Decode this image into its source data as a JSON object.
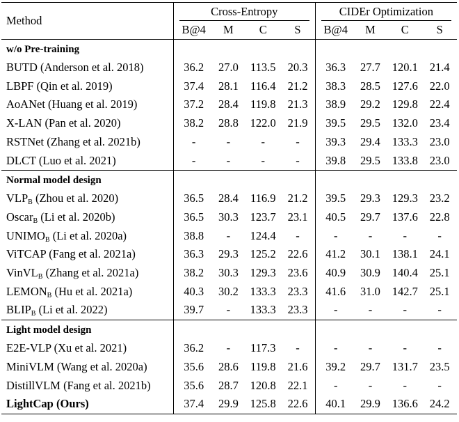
{
  "table": {
    "method_header": "Method",
    "group_headers": [
      "Cross-Entropy",
      "CIDEr Optimization"
    ],
    "metric_headers": [
      "B@4",
      "M",
      "C",
      "S",
      "B@4",
      "M",
      "C",
      "S"
    ],
    "sections": [
      {
        "label": "w/o Pre-training",
        "rows": [
          {
            "name": "BUTD",
            "sub": "",
            "cite": " (Anderson et al. 2018)",
            "values": [
              "36.2",
              "27.0",
              "113.5",
              "20.3",
              "36.3",
              "27.7",
              "120.1",
              "21.4"
            ]
          },
          {
            "name": "LBPF",
            "sub": "",
            "cite": " (Qin et al. 2019)",
            "values": [
              "37.4",
              "28.1",
              "116.4",
              "21.2",
              "38.3",
              "28.5",
              "127.6",
              "22.0"
            ]
          },
          {
            "name": "AoANet",
            "sub": "",
            "cite": " (Huang et al. 2019)",
            "values": [
              "37.2",
              "28.4",
              "119.8",
              "21.3",
              "38.9",
              "29.2",
              "129.8",
              "22.4"
            ]
          },
          {
            "name": "X-LAN",
            "sub": "",
            "cite": " (Pan et al. 2020)",
            "values": [
              "38.2",
              "28.8",
              "122.0",
              "21.9",
              "39.5",
              "29.5",
              "132.0",
              "23.4"
            ]
          },
          {
            "name": "RSTNet",
            "sub": "",
            "cite": " (Zhang et al. 2021b)",
            "values": [
              "-",
              "-",
              "-",
              "-",
              "39.3",
              "29.4",
              "133.3",
              "23.0"
            ]
          },
          {
            "name": "DLCT",
            "sub": "",
            "cite": " (Luo et al. 2021)",
            "values": [
              "-",
              "-",
              "-",
              "-",
              "39.8",
              "29.5",
              "133.8",
              "23.0"
            ]
          }
        ]
      },
      {
        "label": "Normal model design",
        "rows": [
          {
            "name": "VLP",
            "sub": "B",
            "cite": " (Zhou et al. 2020)",
            "values": [
              "36.5",
              "28.4",
              "116.9",
              "21.2",
              "39.5",
              "29.3",
              "129.3",
              "23.2"
            ]
          },
          {
            "name": "Oscar",
            "sub": "B",
            "cite": " (Li et al. 2020b)",
            "values": [
              "36.5",
              "30.3",
              "123.7",
              "23.1",
              "40.5",
              "29.7",
              "137.6",
              "22.8"
            ]
          },
          {
            "name": "UNIMO",
            "sub": "B",
            "cite": " (Li et al. 2020a)",
            "values": [
              "38.8",
              "-",
              "124.4",
              "-",
              "-",
              "-",
              "-",
              "-"
            ]
          },
          {
            "name": "ViTCAP",
            "sub": "",
            "cite": " (Fang et al. 2021a)",
            "values": [
              "36.3",
              "29.3",
              "125.2",
              "22.6",
              "41.2",
              "30.1",
              "138.1",
              "24.1"
            ]
          },
          {
            "name": "VinVL",
            "sub": "B",
            "cite": " (Zhang et al. 2021a)",
            "values": [
              "38.2",
              "30.3",
              "129.3",
              "23.6",
              "40.9",
              "30.9",
              "140.4",
              "25.1"
            ]
          },
          {
            "name": "LEMON",
            "sub": "B",
            "cite": " (Hu et al. 2021a)",
            "values": [
              "40.3",
              "30.2",
              "133.3",
              "23.3",
              "41.6",
              "31.0",
              "142.7",
              "25.1"
            ]
          },
          {
            "name": "BLIP",
            "sub": "B",
            "cite": " (Li et al. 2022)",
            "values": [
              "39.7",
              "-",
              "133.3",
              "23.3",
              "-",
              "-",
              "-",
              "-"
            ]
          }
        ]
      },
      {
        "label": "Light model design",
        "rows": [
          {
            "name": "E2E-VLP",
            "sub": "",
            "cite": " (Xu et al. 2021)",
            "values": [
              "36.2",
              "-",
              "117.3",
              "-",
              "-",
              "-",
              "-",
              "-"
            ]
          },
          {
            "name": "MiniVLM",
            "sub": "",
            "cite": " (Wang et al. 2020a)",
            "values": [
              "35.6",
              "28.6",
              "119.8",
              "21.6",
              "39.2",
              "29.7",
              "131.7",
              "23.5"
            ]
          },
          {
            "name": "DistillVLM",
            "sub": "",
            "cite": " (Fang et al. 2021b)",
            "values": [
              "35.6",
              "28.7",
              "120.8",
              "22.1",
              "-",
              "-",
              "-",
              "-"
            ]
          },
          {
            "name": "LightCap",
            "sub": "",
            "cite": " (Ours)",
            "bold": true,
            "values": [
              "37.4",
              "29.9",
              "125.8",
              "22.6",
              "40.1",
              "29.9",
              "136.6",
              "24.2"
            ]
          }
        ]
      }
    ]
  }
}
